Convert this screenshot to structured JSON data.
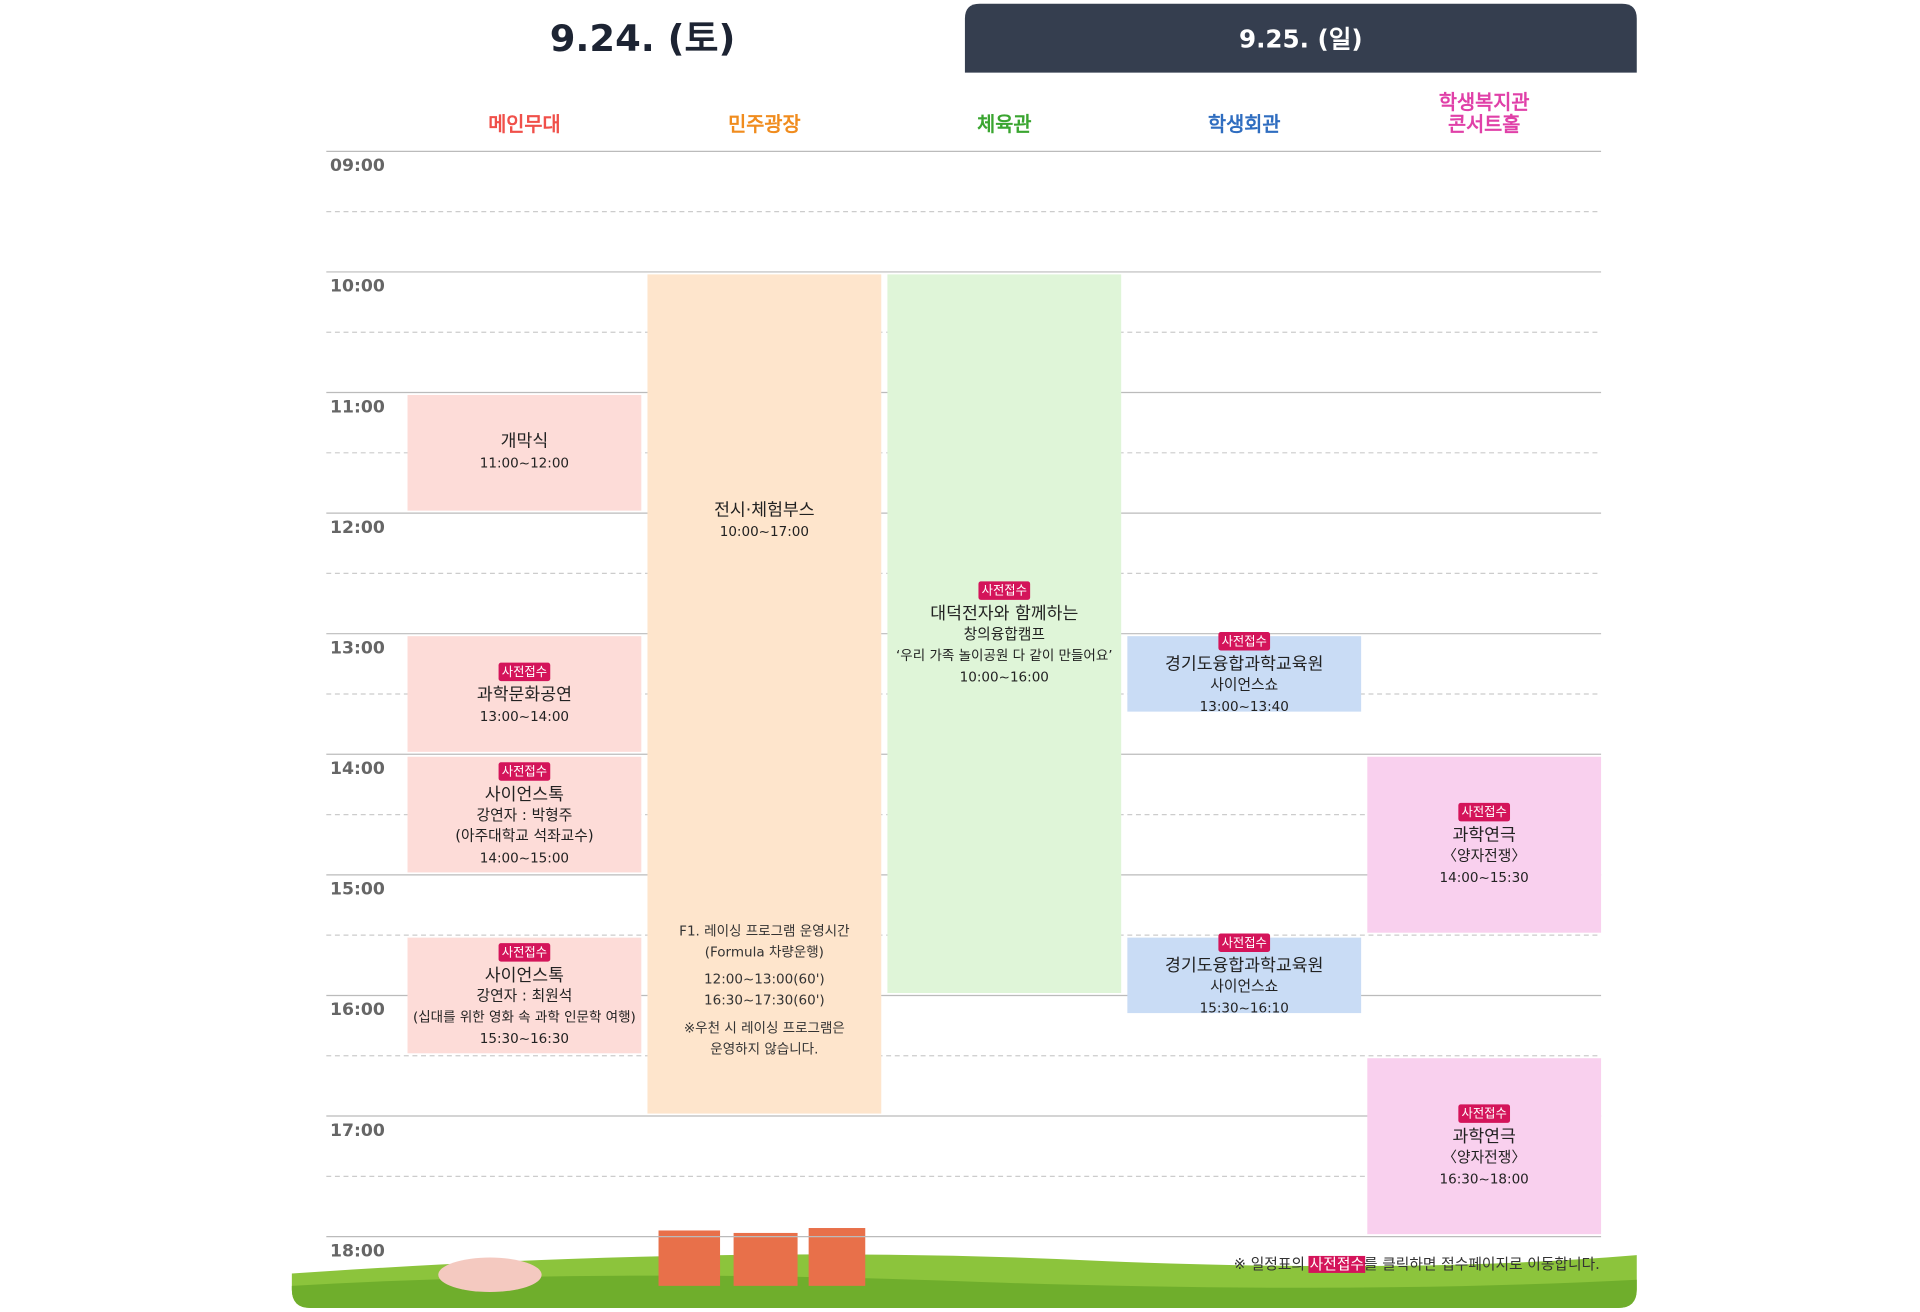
{
  "tabs": [
    {
      "label": "9.24. (토)",
      "active": true
    },
    {
      "label": "9.25. (일)",
      "active": false
    }
  ],
  "times": [
    "09:00",
    "10:00",
    "11:00",
    "12:00",
    "13:00",
    "14:00",
    "15:00",
    "16:00",
    "17:00",
    "18:00"
  ],
  "venues": [
    {
      "name": [
        "메인무대"
      ],
      "color": "#f0504a",
      "box_color": "#fddcd8",
      "events": [
        {
          "lines": [
            "개막식"
          ],
          "time": "11:00~12:00"
        },
        {
          "tag": "사전접수",
          "lines": [
            "과학문화공연"
          ],
          "time": "13:00~14:00"
        },
        {
          "tag": "사전접수",
          "lines": [
            "사이언스톡",
            "강연자 : 박형주",
            "(아주대학교 석좌교수)"
          ],
          "time": "14:00~15:00"
        },
        {
          "tag": "사전접수",
          "lines": [
            "사이언스톡",
            "강연자 : 최원석",
            "(십대를 위한 영화 속 과학 인문학 여행)"
          ],
          "time": "15:30~16:30"
        }
      ]
    },
    {
      "name": [
        "민주광장"
      ],
      "color": "#f08c1e",
      "box_color": "#fee5cc",
      "events": [
        {
          "lines": [
            "전시·체험부스"
          ],
          "time": "10:00~17:00",
          "notes": [
            "F1. 레이싱 프로그램 운영시간",
            "(Formula 차량운행)",
            "12:00~13:00(60')",
            "16:30~17:30(60')",
            "※우천 시 레이싱 프로그램은",
            "운영하지 않습니다."
          ]
        }
      ]
    },
    {
      "name": [
        "체육관"
      ],
      "color": "#3aa530",
      "box_color": "#dff5d8",
      "events": [
        {
          "tag": "사전접수",
          "lines": [
            "대덕전자와 함께하는",
            "창의융합캠프",
            "‘우리 가족 놀이공원 다 같이 만들어요’"
          ],
          "time": "10:00~16:00"
        }
      ]
    },
    {
      "name": [
        "학생회관"
      ],
      "color": "#2f6dc0",
      "box_color": "#c9dcf5",
      "events": [
        {
          "tag": "사전접수",
          "lines": [
            "경기도융합과학교육원",
            "사이언스쇼"
          ],
          "time": "13:00~13:40"
        },
        {
          "tag": "사전접수",
          "lines": [
            "경기도융합과학교육원",
            "사이언스쇼"
          ],
          "time": "15:30~16:10"
        }
      ]
    },
    {
      "name": [
        "학생복지관",
        "콘서트홀"
      ],
      "color": "#e040a8",
      "box_color": "#f9d0ee",
      "events": [
        {
          "tag": "사전접수",
          "lines": [
            "과학연극",
            "〈양자전쟁〉"
          ],
          "time": "14:00~15:30"
        },
        {
          "tag": "사전접수",
          "lines": [
            "과학연극",
            "〈양자전쟁〉"
          ],
          "time": "16:30~18:00"
        }
      ]
    }
  ],
  "footer": {
    "before": "※ 일정표의 ",
    "highlight": "사전접수",
    "after": "를 클릭하면 접수페이지로 이동합니다."
  }
}
